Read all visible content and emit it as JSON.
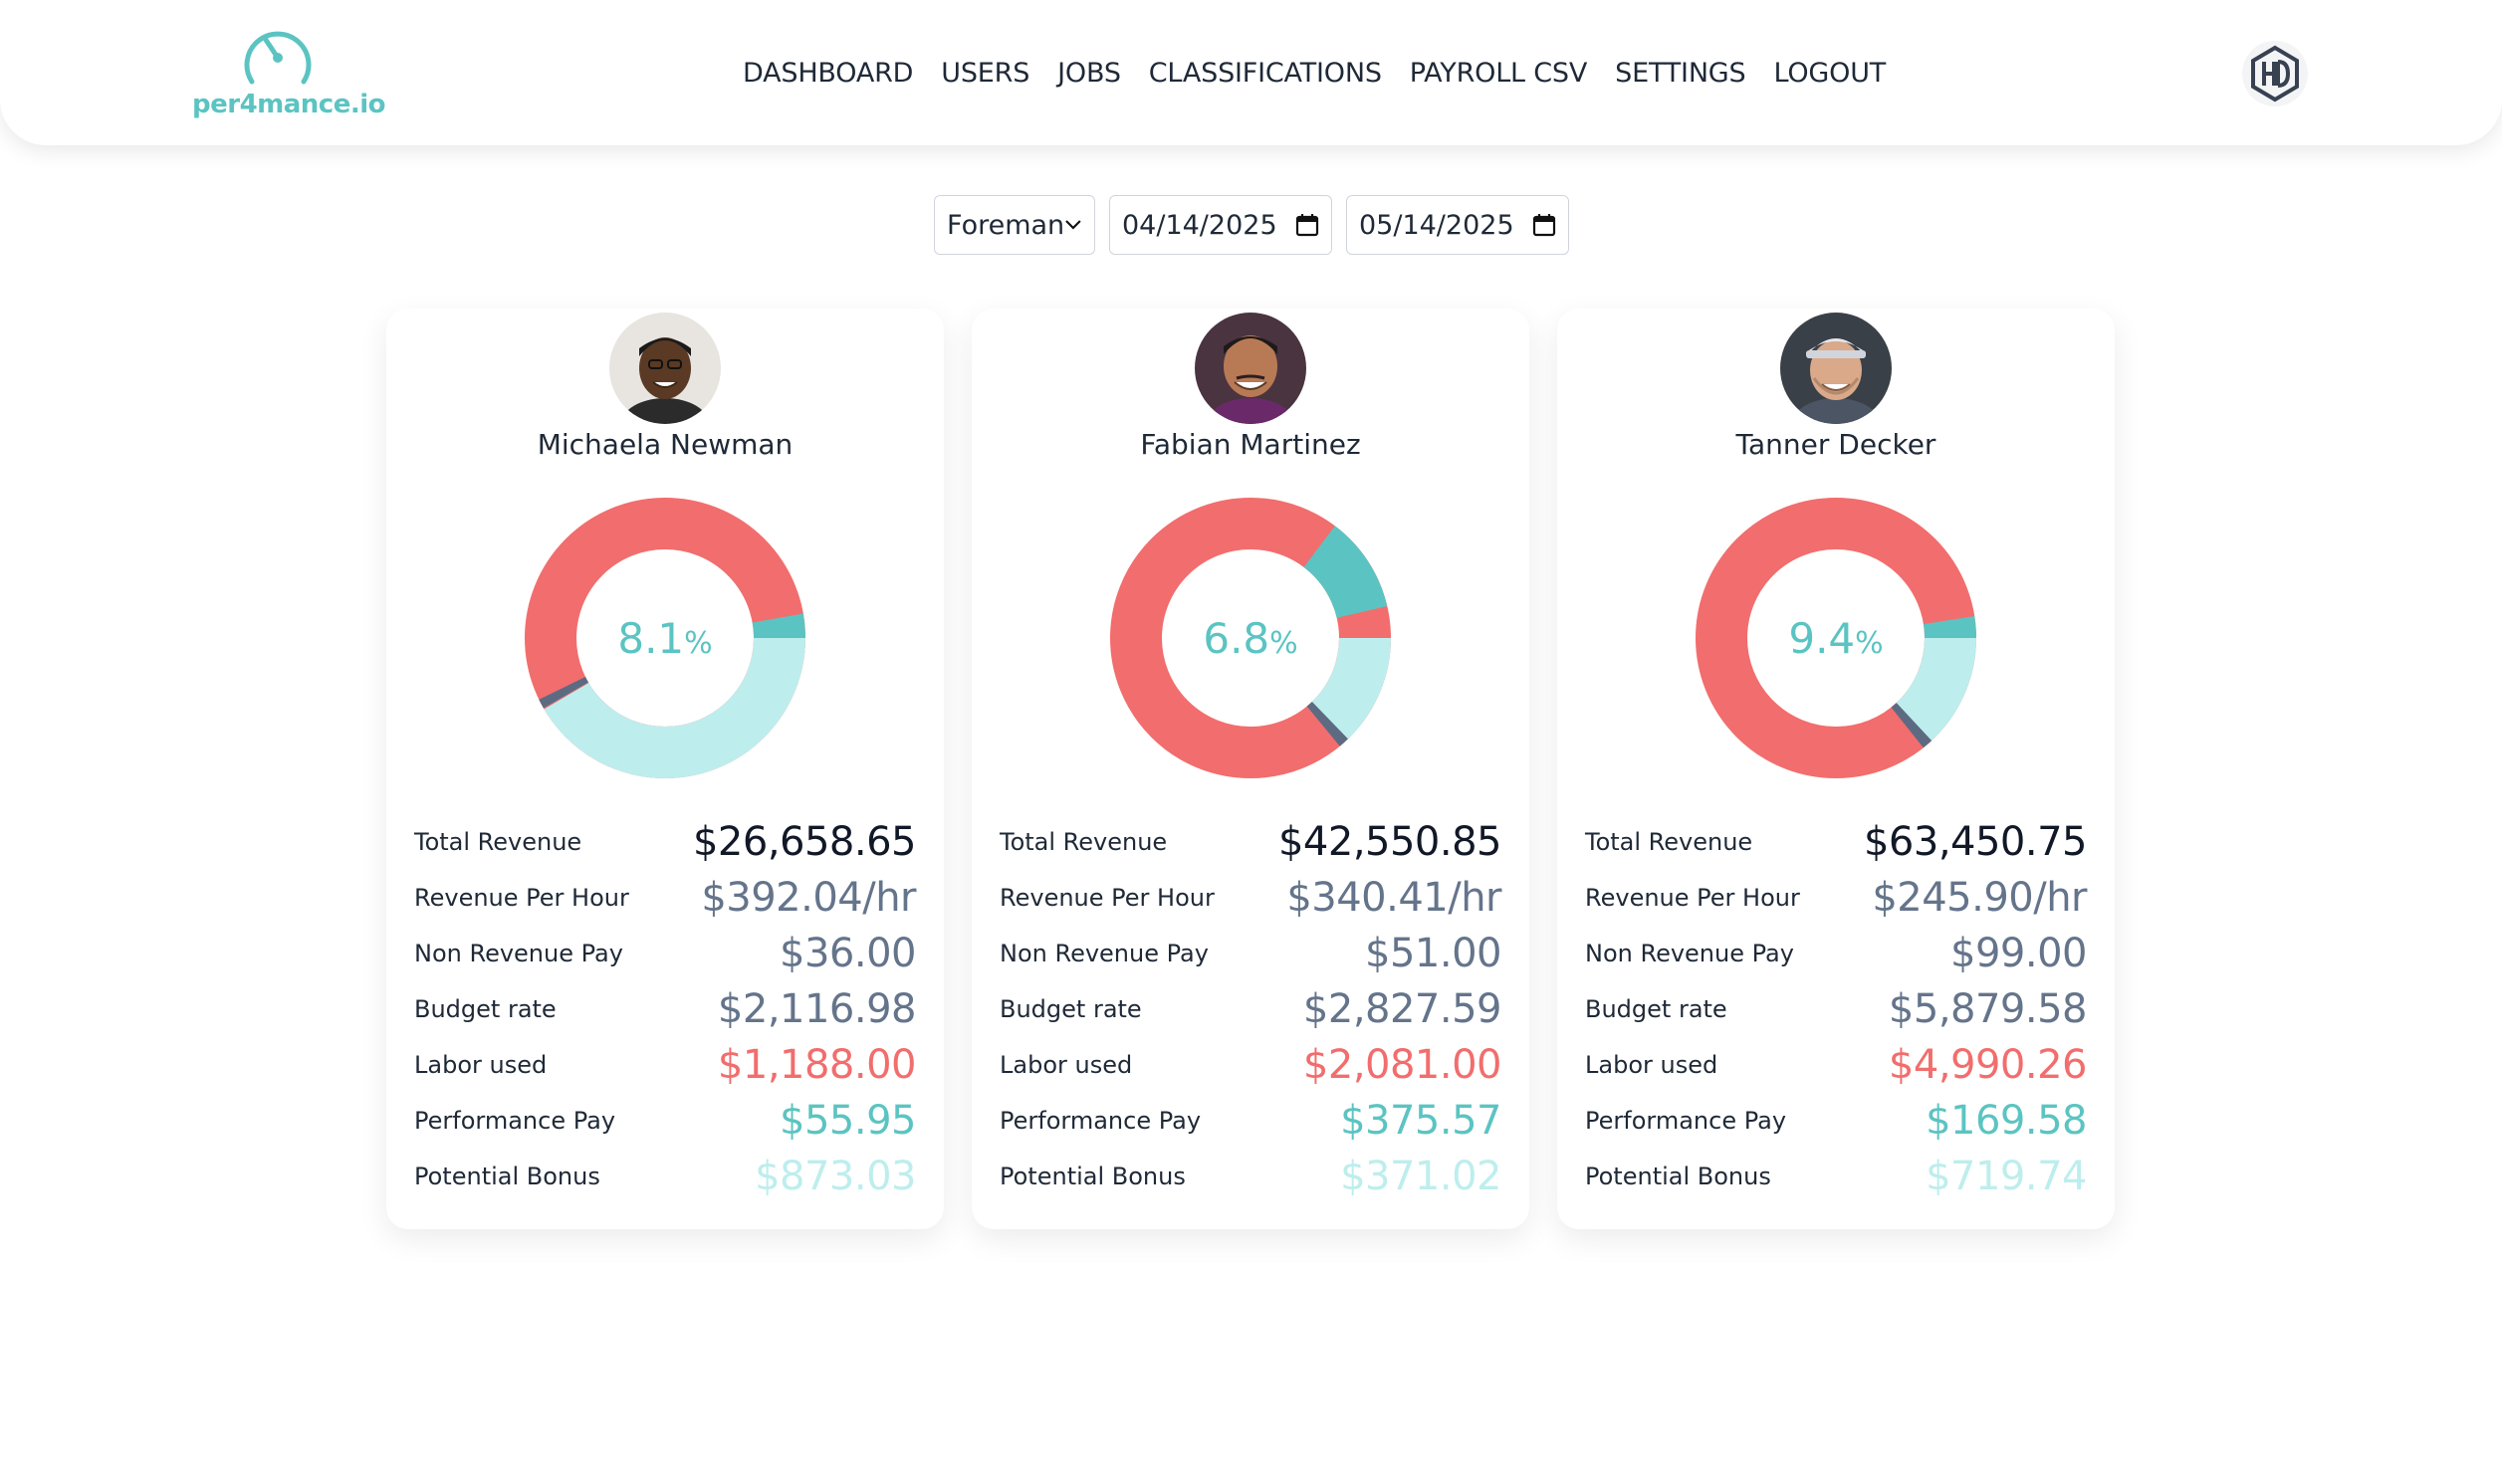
{
  "header": {
    "logo_text": "per4mance.io",
    "nav": [
      "DASHBOARD",
      "USERS",
      "JOBS",
      "CLASSIFICATIONS",
      "PAYROLL CSV",
      "SETTINGS",
      "LOGOUT"
    ]
  },
  "filters": {
    "role": "Foreman",
    "start_date": "04/14/2025",
    "end_date": "05/14/2025"
  },
  "colors": {
    "accent": "#5bc4c2",
    "red": "#f26d6d",
    "light_teal": "#bdeeed",
    "slate": "#64748b"
  },
  "labels": {
    "total_revenue": "Total Revenue",
    "revenue_per_hour": "Revenue Per Hour",
    "non_revenue_pay": "Non Revenue Pay",
    "budget_rate": "Budget rate",
    "labor_used": "Labor used",
    "performance_pay": "Performance Pay",
    "potential_bonus": "Potential Bonus"
  },
  "cards": [
    {
      "name": "Michaela Newman",
      "percent": "8.1",
      "percent_sign": "%",
      "total_revenue": "$26,658.65",
      "revenue_per_hour": "$392.04/hr",
      "non_revenue_pay": "$36.00",
      "budget_rate": "$2,116.98",
      "labor_used": "$1,188.00",
      "performance_pay": "$55.95",
      "potential_bonus": "$873.03"
    },
    {
      "name": "Fabian Martinez",
      "percent": "6.8",
      "percent_sign": "%",
      "total_revenue": "$42,550.85",
      "revenue_per_hour": "$340.41/hr",
      "non_revenue_pay": "$51.00",
      "budget_rate": "$2,827.59",
      "labor_used": "$2,081.00",
      "performance_pay": "$375.57",
      "potential_bonus": "$371.02"
    },
    {
      "name": "Tanner Decker",
      "percent": "9.4",
      "percent_sign": "%",
      "total_revenue": "$63,450.75",
      "revenue_per_hour": "$245.90/hr",
      "non_revenue_pay": "$99.00",
      "budget_rate": "$5,879.58",
      "labor_used": "$4,990.26",
      "performance_pay": "$169.58",
      "potential_bonus": "$719.74"
    }
  ]
}
